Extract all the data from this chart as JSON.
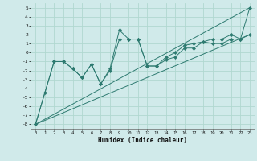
{
  "xlabel": "Humidex (Indice chaleur)",
  "xlim": [
    -0.5,
    23.5
  ],
  "ylim": [
    -8.5,
    5.5
  ],
  "xticks": [
    0,
    1,
    2,
    3,
    4,
    5,
    6,
    7,
    8,
    9,
    10,
    11,
    12,
    13,
    14,
    15,
    16,
    17,
    18,
    19,
    20,
    21,
    22,
    23
  ],
  "yticks": [
    -8,
    -7,
    -6,
    -5,
    -4,
    -3,
    -2,
    -1,
    0,
    1,
    2,
    3,
    4,
    5
  ],
  "bg_color": "#d0eaea",
  "line_color": "#2d7a70",
  "grid_color": "#b0d8d0",
  "lines": [
    {
      "x": [
        0,
        1,
        2,
        3,
        4,
        5,
        6,
        7,
        8,
        9,
        10,
        11,
        12,
        13,
        14,
        15,
        16,
        17,
        18,
        19,
        20,
        21,
        22,
        23
      ],
      "y": [
        -8,
        -4.5,
        -1,
        -1,
        -1.8,
        -2.8,
        -1.3,
        -3.5,
        -1.8,
        2.5,
        1.5,
        1.5,
        -1.5,
        -1.5,
        -0.5,
        0,
        0.8,
        1.0,
        1.2,
        1.5,
        1.5,
        2.0,
        1.5,
        5.0
      ],
      "has_marker": true
    },
    {
      "x": [
        0,
        2,
        3,
        4,
        5,
        6,
        7,
        8,
        9,
        10,
        11,
        12,
        13,
        14,
        15,
        16,
        17,
        18,
        19,
        20,
        21,
        22,
        23
      ],
      "y": [
        -8,
        -1,
        -1,
        -1.8,
        -2.8,
        -1.3,
        -3.5,
        -2.0,
        1.5,
        1.5,
        1.5,
        -1.5,
        -1.5,
        -0.8,
        -0.5,
        0.5,
        0.5,
        1.2,
        1.0,
        1.0,
        1.5,
        1.5,
        2.0
      ],
      "has_marker": true
    },
    {
      "x": [
        0,
        23
      ],
      "y": [
        -8,
        5.0
      ],
      "has_marker": false
    },
    {
      "x": [
        0,
        23
      ],
      "y": [
        -8,
        2.0
      ],
      "has_marker": false
    }
  ],
  "marker": "D",
  "markersize": 2.2,
  "linewidth": 0.7
}
